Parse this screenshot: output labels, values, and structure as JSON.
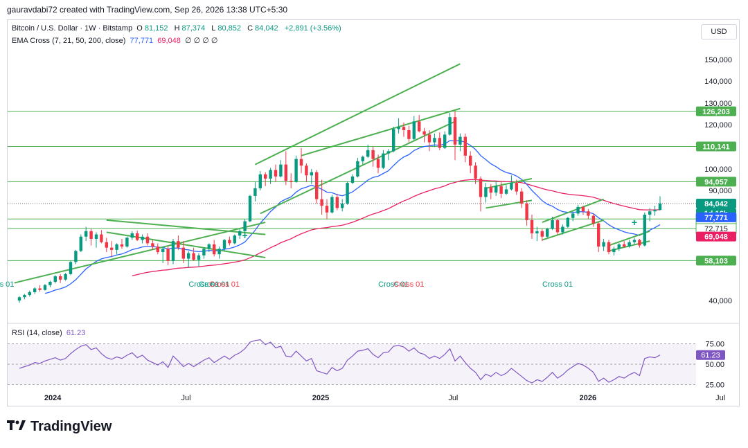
{
  "header": {
    "attribution": "gauravdabi72 created with TradingView.com, Sep 26, 2026 13:38 UTC+5:30"
  },
  "legend": {
    "symbol": "Bitcoin / U.S. Dollar · 1W · Bitstamp",
    "open_label": "O",
    "open": "81,152",
    "high_label": "H",
    "high": "87,374",
    "low_label": "L",
    "low": "80,852",
    "close_label": "C",
    "close": "84,042",
    "change": "+2,891 (+3.56%)",
    "ema_label": "EMA Cross (7, 21, 50, 200, close)",
    "ema_v1": "77,771",
    "ema_v2": "69,048",
    "ema_rest": "∅ ∅ ∅ ∅"
  },
  "currency_button": "USD",
  "rsi_legend": {
    "label": "RSI (14, close)",
    "value": "61.23"
  },
  "logo_text": "TradingView",
  "colors": {
    "up": "#089981",
    "down": "#f23645",
    "ema_blue": "#2962ff",
    "ema_pink": "#e91e63",
    "lines": "#4caf50",
    "rsi": "#7e57c2"
  },
  "chart_data": {
    "type": "candlestick",
    "timeframe": "1W",
    "y_ticks": [
      "150,000",
      "140,000",
      "130,000",
      "120,000",
      "100,000",
      "90,000",
      "40,000"
    ],
    "x_ticks": [
      {
        "label": "2024",
        "date": "2024-01"
      },
      {
        "label": "Jul",
        "date": "2024-07"
      },
      {
        "label": "2025",
        "date": "2025-01"
      },
      {
        "label": "Jul",
        "date": "2025-07"
      },
      {
        "label": "2026",
        "date": "2026-01"
      },
      {
        "label": "Jul",
        "date": "2026-07"
      }
    ],
    "price_candles": [
      [
        40000,
        42000,
        39000,
        41500
      ],
      [
        41500,
        43000,
        40500,
        42500
      ],
      [
        42500,
        44500,
        41800,
        43800
      ],
      [
        43800,
        46000,
        43000,
        45500
      ],
      [
        45500,
        47000,
        44000,
        44800
      ],
      [
        44800,
        47500,
        44500,
        47000
      ],
      [
        47000,
        49000,
        46000,
        48500
      ],
      [
        48500,
        51500,
        47800,
        51000
      ],
      [
        51000,
        52000,
        48000,
        49500
      ],
      [
        49500,
        52500,
        49000,
        52000
      ],
      [
        52000,
        58000,
        51500,
        57500
      ],
      [
        57500,
        63000,
        56500,
        62500
      ],
      [
        62500,
        70000,
        62000,
        69000
      ],
      [
        69000,
        73500,
        67000,
        71500
      ],
      [
        71500,
        72500,
        65000,
        68000
      ],
      [
        68000,
        71000,
        64000,
        70000
      ],
      [
        70000,
        72000,
        66000,
        66500
      ],
      [
        66500,
        68500,
        62000,
        64000
      ],
      [
        64000,
        67000,
        60000,
        63000
      ],
      [
        63000,
        66000,
        61000,
        65500
      ],
      [
        65500,
        68000,
        63500,
        64500
      ],
      [
        64500,
        69000,
        64000,
        68500
      ],
      [
        68500,
        71500,
        67500,
        70500
      ],
      [
        70500,
        71800,
        67000,
        67500
      ],
      [
        67500,
        70000,
        66000,
        69000
      ],
      [
        69000,
        70500,
        65000,
        66000
      ],
      [
        66000,
        67500,
        63000,
        64500
      ],
      [
        64500,
        66000,
        61000,
        62000
      ],
      [
        62000,
        64500,
        57000,
        63500
      ],
      [
        63500,
        64500,
        56000,
        58000
      ],
      [
        58000,
        68000,
        56500,
        67000
      ],
      [
        67000,
        69500,
        63000,
        64000
      ],
      [
        64000,
        67000,
        57000,
        59000
      ],
      [
        59000,
        62500,
        55000,
        61500
      ],
      [
        61500,
        64000,
        58000,
        58500
      ],
      [
        58500,
        61500,
        55500,
        60500
      ],
      [
        60500,
        64000,
        59000,
        63500
      ],
      [
        63500,
        66000,
        62000,
        65500
      ],
      [
        65500,
        67500,
        60000,
        61000
      ],
      [
        61000,
        64500,
        59000,
        63500
      ],
      [
        63500,
        68000,
        62500,
        67500
      ],
      [
        67500,
        69000,
        65000,
        66000
      ],
      [
        66000,
        70000,
        65500,
        69500
      ],
      [
        69500,
        72500,
        68000,
        71500
      ],
      [
        71500,
        77000,
        68500,
        76000
      ],
      [
        76000,
        88000,
        75500,
        87500
      ],
      [
        87500,
        94000,
        85000,
        91000
      ],
      [
        91000,
        99000,
        90000,
        97500
      ],
      [
        97500,
        98500,
        92000,
        95500
      ],
      [
        95500,
        100500,
        93000,
        99500
      ],
      [
        99500,
        102000,
        94000,
        96500
      ],
      [
        96500,
        104000,
        96000,
        102000
      ],
      [
        102000,
        108000,
        92500,
        94500
      ],
      [
        94500,
        98000,
        91000,
        94000
      ],
      [
        94000,
        106000,
        93500,
        104500
      ],
      [
        104500,
        109500,
        98000,
        101500
      ],
      [
        101500,
        102500,
        94000,
        97000
      ],
      [
        97000,
        100000,
        93000,
        98500
      ],
      [
        98500,
        99500,
        84000,
        86000
      ],
      [
        86000,
        95000,
        79000,
        83000
      ],
      [
        83000,
        86000,
        77000,
        80000
      ],
      [
        80000,
        88000,
        79500,
        87000
      ],
      [
        87000,
        88500,
        81000,
        82000
      ],
      [
        82000,
        86000,
        80500,
        84000
      ],
      [
        84000,
        94000,
        83500,
        93500
      ],
      [
        93500,
        97500,
        93000,
        96500
      ],
      [
        96500,
        105000,
        96000,
        103500
      ],
      [
        103500,
        106000,
        102000,
        105500
      ],
      [
        105500,
        111000,
        105000,
        108500
      ],
      [
        108500,
        110000,
        101000,
        104500
      ],
      [
        104500,
        106500,
        98000,
        100500
      ],
      [
        100500,
        108500,
        100000,
        107000
      ],
      [
        107000,
        109000,
        104000,
        108000
      ],
      [
        108000,
        119000,
        107500,
        118000
      ],
      [
        118000,
        123000,
        116000,
        119000
      ],
      [
        119000,
        121000,
        114500,
        117500
      ],
      [
        117500,
        119500,
        112000,
        113500
      ],
      [
        113500,
        124000,
        113000,
        121500
      ],
      [
        121500,
        124500,
        116500,
        117000
      ],
      [
        117000,
        118500,
        112000,
        115500
      ],
      [
        115500,
        117500,
        108000,
        112000
      ],
      [
        112000,
        116000,
        110000,
        114000
      ],
      [
        114000,
        116500,
        108500,
        109500
      ],
      [
        109500,
        117000,
        109000,
        115500
      ],
      [
        115500,
        125500,
        115000,
        123500
      ],
      [
        123500,
        126200,
        104000,
        111000
      ],
      [
        111000,
        116000,
        108000,
        114500
      ],
      [
        114500,
        116000,
        103000,
        106000
      ],
      [
        106000,
        108000,
        98000,
        101500
      ],
      [
        101500,
        103000,
        93000,
        95500
      ],
      [
        95500,
        96500,
        80500,
        87000
      ],
      [
        87000,
        93500,
        84500,
        91500
      ],
      [
        91500,
        93000,
        86000,
        89000
      ],
      [
        89000,
        94000,
        87500,
        92000
      ],
      [
        92000,
        94000,
        86500,
        88500
      ],
      [
        88500,
        92500,
        88000,
        90500
      ],
      [
        90500,
        97000,
        90000,
        93500
      ],
      [
        93500,
        95000,
        88000,
        89500
      ],
      [
        89500,
        91000,
        82000,
        84000
      ],
      [
        84000,
        85500,
        74000,
        76500
      ],
      [
        76500,
        79000,
        68000,
        70500
      ],
      [
        70500,
        73500,
        67000,
        71500
      ],
      [
        71500,
        72500,
        67000,
        69000
      ],
      [
        69000,
        73000,
        68500,
        72500
      ],
      [
        72500,
        78000,
        72000,
        76500
      ],
      [
        76500,
        77000,
        70000,
        71000
      ],
      [
        71000,
        74500,
        70000,
        73500
      ],
      [
        73500,
        78000,
        73000,
        77500
      ],
      [
        77500,
        80500,
        76000,
        79500
      ],
      [
        79500,
        83500,
        78500,
        82500
      ],
      [
        82500,
        83000,
        79000,
        80500
      ],
      [
        80500,
        81500,
        77000,
        78500
      ],
      [
        78500,
        79500,
        73500,
        75000
      ],
      [
        75000,
        75500,
        62000,
        64500
      ],
      [
        64500,
        68000,
        62500,
        66500
      ],
      [
        66500,
        67500,
        61000,
        62000
      ],
      [
        62000,
        64500,
        60500,
        63500
      ],
      [
        63500,
        66000,
        62500,
        65500
      ],
      [
        65500,
        67000,
        64000,
        64500
      ],
      [
        64500,
        67500,
        64000,
        66500
      ],
      [
        66500,
        68500,
        65500,
        67500
      ],
      [
        67500,
        68000,
        64000,
        65000
      ],
      [
        65000,
        80000,
        64500,
        79000
      ],
      [
        79000,
        82000,
        76000,
        80500
      ],
      [
        80500,
        83000,
        78500,
        81200
      ],
      [
        81152,
        87374,
        80852,
        84042
      ]
    ],
    "rsi": [
      45,
      47,
      49,
      52,
      51,
      54,
      56,
      58,
      55,
      57,
      63,
      68,
      72,
      74,
      68,
      70,
      63,
      58,
      56,
      59,
      57,
      61,
      64,
      58,
      61,
      55,
      52,
      49,
      53,
      46,
      60,
      54,
      47,
      51,
      47,
      51,
      55,
      58,
      52,
      56,
      60,
      56,
      61,
      64,
      69,
      77,
      79,
      80,
      74,
      77,
      70,
      72,
      60,
      59,
      66,
      60,
      54,
      57,
      42,
      40,
      38,
      46,
      42,
      45,
      55,
      60,
      66,
      67,
      69,
      62,
      58,
      64,
      65,
      72,
      73,
      71,
      66,
      70,
      64,
      62,
      57,
      60,
      57,
      62,
      69,
      54,
      60,
      52,
      45,
      40,
      31,
      38,
      35,
      40,
      36,
      39,
      45,
      40,
      35,
      30,
      27,
      31,
      29,
      34,
      40,
      33,
      37,
      43,
      47,
      51,
      49,
      45,
      40,
      29,
      33,
      28,
      31,
      35,
      33,
      37,
      40,
      36,
      57,
      59,
      58,
      61.23
    ],
    "ema_blue_end": "77,771",
    "ema_pink_end": "69,048",
    "ema_cross_labels": [
      "Cross 01",
      "Cross 01",
      "Cross 01",
      "Cross 01",
      "Cross 01",
      "Cross 01",
      "Cross 01"
    ],
    "horizontal_levels": [
      {
        "label": "126,203",
        "value": 126203,
        "color": "#4caf50"
      },
      {
        "label": "110,141",
        "value": 110141,
        "color": "#4caf50"
      },
      {
        "label": "94,057",
        "value": 94057,
        "color": "#4caf50"
      },
      {
        "label": "77,026",
        "value": 77026,
        "color": "#4caf50"
      },
      {
        "label": "72,715",
        "value": 72715,
        "color": "#4caf50"
      },
      {
        "label": "58,103",
        "value": 58103,
        "color": "#4caf50"
      }
    ],
    "price_labels": [
      {
        "text": "84,042",
        "bg": "#089981"
      },
      {
        "text": "1d 16h",
        "bg": "#089981"
      },
      {
        "text": "77,771",
        "bg": "#2962ff"
      },
      {
        "text": "69,048",
        "bg": "#e91e63"
      }
    ],
    "rsi_ticks": [
      "75.00",
      "50.00",
      "25.00"
    ],
    "rsi_current_label": "61.23"
  }
}
